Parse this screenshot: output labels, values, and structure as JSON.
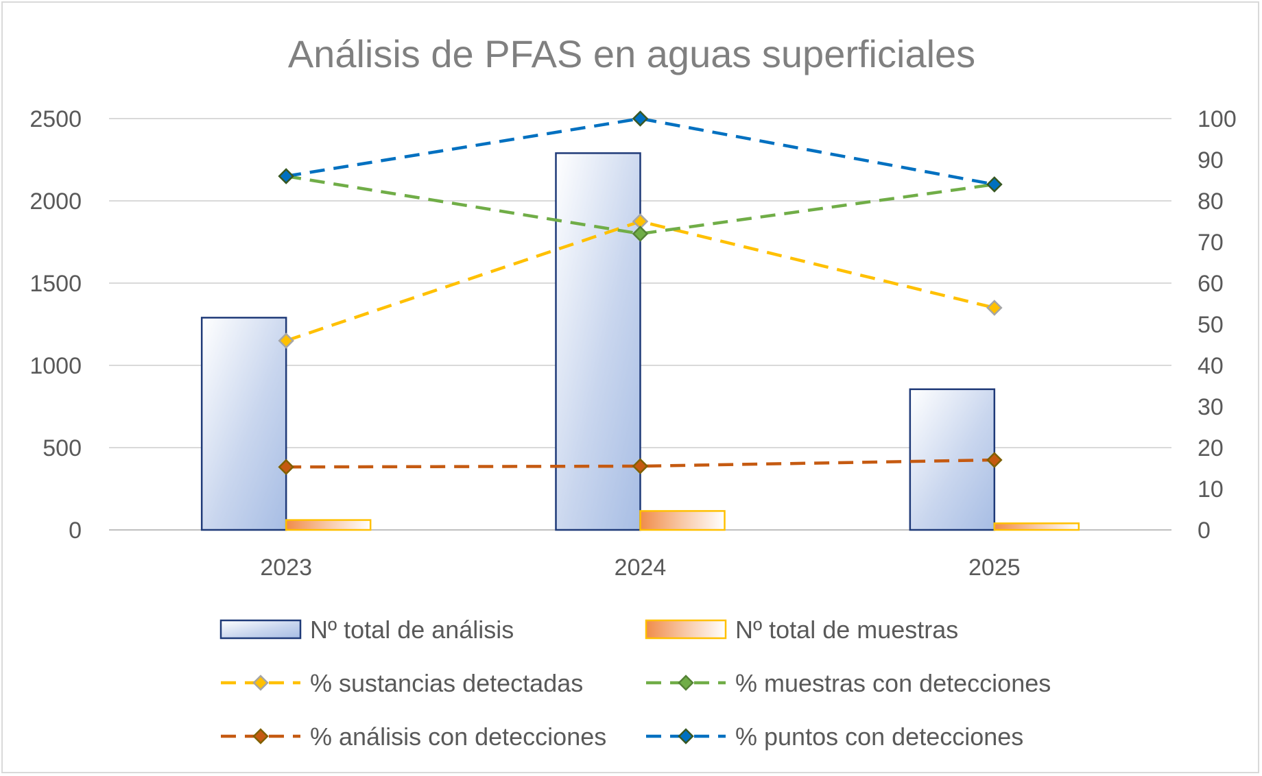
{
  "chart_data": {
    "type": "bar",
    "title": "Análisis de PFAS en aguas superficiales",
    "categories": [
      "2023",
      "2024",
      "2025"
    ],
    "y_left": {
      "lim": [
        0,
        2500
      ],
      "ticks": [
        "0",
        "500",
        "1000",
        "1500",
        "2000",
        "2500"
      ]
    },
    "y_right": {
      "lim": [
        0,
        100
      ],
      "ticks": [
        "0",
        "10",
        "20",
        "30",
        "40",
        "50",
        "60",
        "70",
        "80",
        "90",
        "100"
      ]
    },
    "grid": true,
    "legend_position": "bottom",
    "bar_series": [
      {
        "name": "Nº total de análisis",
        "axis": "left",
        "values": [
          1290,
          2290,
          855
        ],
        "color": "#b4c7e7",
        "border": "#1f3a78"
      },
      {
        "name": "Nº total de muestras",
        "axis": "left",
        "values": [
          60,
          115,
          40
        ],
        "color": "#f4b183",
        "border": "#ffc000"
      }
    ],
    "line_series": [
      {
        "name": "% sustancias detectadas",
        "axis": "right",
        "values": [
          46,
          75,
          54
        ],
        "color": "#ffc000",
        "marker_color": "#ffc000",
        "marker_border": "#a5a5a5"
      },
      {
        "name": "% muestras con detecciones",
        "axis": "right",
        "values": [
          86,
          72,
          84
        ],
        "color": "#70ad47",
        "marker_color": "#70ad47",
        "marker_border": "#548235"
      },
      {
        "name": "% análisis con detecciones",
        "axis": "right",
        "values": [
          15.3,
          15.5,
          17
        ],
        "color": "#c55a11",
        "marker_color": "#c55a11",
        "marker_border": "#7f6000"
      },
      {
        "name": "% puntos con detecciones",
        "axis": "right",
        "values": [
          86,
          100,
          84
        ],
        "color": "#0070c0",
        "marker_color": "#0070c0",
        "marker_border": "#385723"
      }
    ]
  }
}
